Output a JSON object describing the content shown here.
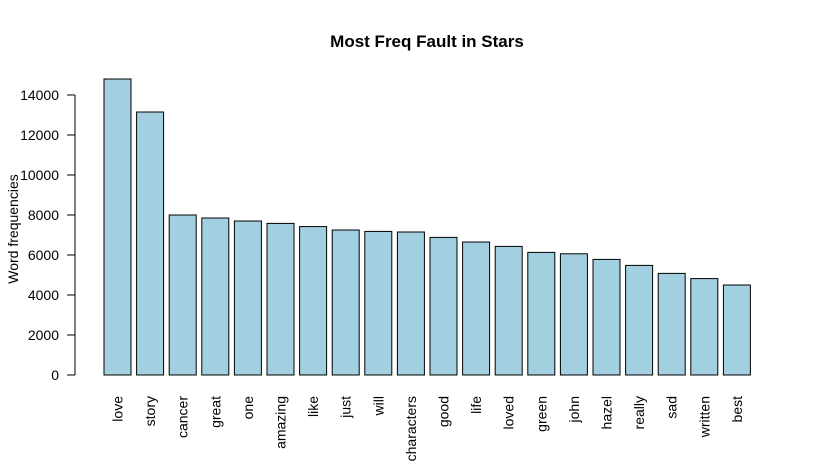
{
  "chart_data": {
    "type": "bar",
    "title": "Most Freq Fault in Stars",
    "xlabel": "",
    "ylabel": "Word frequencies",
    "categories": [
      "love",
      "story",
      "cancer",
      "great",
      "one",
      "amazing",
      "like",
      "just",
      "will",
      "characters",
      "good",
      "life",
      "loved",
      "green",
      "john",
      "hazel",
      "really",
      "sad",
      "written",
      "best"
    ],
    "values": [
      14800,
      13150,
      8000,
      7850,
      7700,
      7580,
      7420,
      7250,
      7180,
      7150,
      6880,
      6650,
      6430,
      6130,
      6060,
      5780,
      5480,
      5080,
      4820,
      4500
    ],
    "ylim": [
      0,
      14000
    ],
    "yticks": [
      0,
      2000,
      4000,
      6000,
      8000,
      10000,
      12000,
      14000
    ],
    "bar_color": "#a2d0e0",
    "grid": false,
    "legend": "none"
  }
}
